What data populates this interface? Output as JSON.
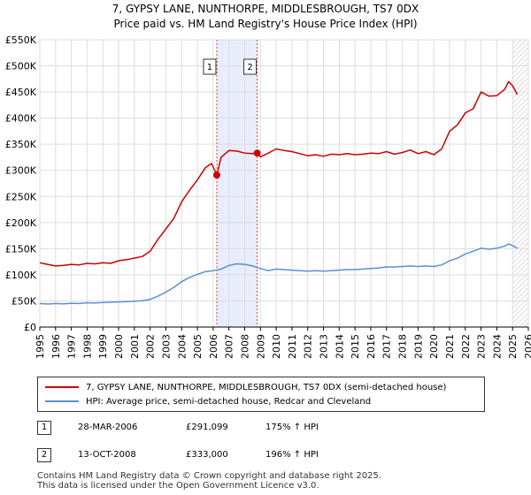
{
  "title_line1": "7, GYPSY LANE, NUNTHORPE, MIDDLESBROUGH, TS7 0DX",
  "title_line2": "Price paid vs. HM Land Registry's House Price Index (HPI)",
  "chart_data": {
    "type": "line",
    "title": "7, GYPSY LANE, NUNTHORPE, MIDDLESBROUGH, TS7 0DX",
    "subtitle": "Price paid vs. HM Land Registry's House Price Index (HPI)",
    "xlabel": "",
    "ylabel": "",
    "xlim": [
      1995,
      2026
    ],
    "ylim": [
      0,
      550000
    ],
    "x_ticks": [
      1995,
      1996,
      1997,
      1998,
      1999,
      2000,
      2001,
      2002,
      2003,
      2004,
      2005,
      2006,
      2007,
      2008,
      2009,
      2010,
      2011,
      2012,
      2013,
      2014,
      2015,
      2016,
      2017,
      2018,
      2019,
      2020,
      2021,
      2022,
      2023,
      2024,
      2025,
      2026
    ],
    "y_ticks": [
      0,
      50000,
      100000,
      150000,
      200000,
      250000,
      300000,
      350000,
      400000,
      450000,
      500000,
      550000
    ],
    "y_tick_labels": [
      "£0",
      "£50K",
      "£100K",
      "£150K",
      "£200K",
      "£250K",
      "£300K",
      "£350K",
      "£400K",
      "£450K",
      "£500K",
      "£550K"
    ],
    "grid": true,
    "series": [
      {
        "name": "7, GYPSY LANE, NUNTHORPE, MIDDLESBROUGH, TS7 0DX (semi-detached house)",
        "color": "#cc0000",
        "x": [
          1995.0,
          1995.5,
          1996.0,
          1996.5,
          1997.0,
          1997.5,
          1998.0,
          1998.5,
          1999.0,
          1999.5,
          2000.0,
          2000.5,
          2001.0,
          2001.5,
          2002.0,
          2002.5,
          2003.0,
          2003.5,
          2004.0,
          2004.5,
          2005.0,
          2005.5,
          2005.9,
          2006.23,
          2006.5,
          2007.0,
          2007.5,
          2008.0,
          2008.5,
          2008.79,
          2009.0,
          2009.5,
          2010.0,
          2010.5,
          2011.0,
          2011.5,
          2012.0,
          2012.5,
          2013.0,
          2013.5,
          2014.0,
          2014.5,
          2015.0,
          2015.5,
          2016.0,
          2016.5,
          2017.0,
          2017.5,
          2018.0,
          2018.5,
          2019.0,
          2019.5,
          2020.0,
          2020.5,
          2021.0,
          2021.5,
          2022.0,
          2022.5,
          2023.0,
          2023.5,
          2024.0,
          2024.5,
          2024.75,
          2025.0,
          2025.3
        ],
        "values": [
          123000,
          120000,
          117000,
          118000,
          120000,
          119000,
          122000,
          121000,
          123000,
          122000,
          127000,
          129000,
          132000,
          135000,
          145000,
          168000,
          188000,
          208000,
          240000,
          262000,
          282000,
          305000,
          313000,
          291099,
          325000,
          338000,
          337000,
          333000,
          332000,
          333000,
          326000,
          333000,
          341000,
          338000,
          336000,
          332000,
          328000,
          330000,
          327000,
          331000,
          330000,
          332000,
          330000,
          331000,
          333000,
          332000,
          336000,
          331000,
          334000,
          339000,
          332000,
          336000,
          330000,
          341000,
          375000,
          387000,
          410000,
          418000,
          450000,
          442000,
          443000,
          455000,
          470000,
          462000,
          445000
        ]
      },
      {
        "name": "HPI: Average price, semi-detached house, Redcar and Cleveland",
        "color": "#5b8fd6",
        "x": [
          1995.0,
          1995.5,
          1996.0,
          1996.5,
          1997.0,
          1997.5,
          1998.0,
          1998.5,
          1999.0,
          1999.5,
          2000.0,
          2000.5,
          2001.0,
          2001.5,
          2002.0,
          2002.5,
          2003.0,
          2003.5,
          2004.0,
          2004.5,
          2005.0,
          2005.5,
          2006.0,
          2006.5,
          2007.0,
          2007.5,
          2008.0,
          2008.5,
          2009.0,
          2009.5,
          2010.0,
          2010.5,
          2011.0,
          2011.5,
          2012.0,
          2012.5,
          2013.0,
          2013.5,
          2014.0,
          2014.5,
          2015.0,
          2015.5,
          2016.0,
          2016.5,
          2017.0,
          2017.5,
          2018.0,
          2018.5,
          2019.0,
          2019.5,
          2020.0,
          2020.5,
          2021.0,
          2021.5,
          2022.0,
          2022.5,
          2023.0,
          2023.5,
          2024.0,
          2024.5,
          2024.75,
          2025.0,
          2025.3
        ],
        "values": [
          45000,
          44000,
          45000,
          44500,
          45500,
          45000,
          46500,
          46000,
          47000,
          47500,
          48000,
          48500,
          49500,
          50500,
          53000,
          59000,
          67000,
          76000,
          87000,
          95000,
          101000,
          106000,
          108000,
          111000,
          118000,
          121000,
          120000,
          117000,
          112000,
          108000,
          111000,
          110000,
          109000,
          108000,
          107000,
          108000,
          107000,
          108000,
          109000,
          110000,
          110000,
          111000,
          112000,
          113000,
          115000,
          115000,
          116000,
          117000,
          116000,
          117000,
          116000,
          119000,
          127000,
          132000,
          140000,
          145000,
          151000,
          149000,
          151000,
          155000,
          159000,
          156000,
          151000
        ]
      }
    ],
    "annotations": [
      {
        "label": "1",
        "x": 2006.23,
        "y": 291099
      },
      {
        "label": "2",
        "x": 2008.79,
        "y": 333000
      }
    ],
    "highlight_range": [
      2006.23,
      2008.79
    ]
  },
  "legend": {
    "property_label": "7, GYPSY LANE, NUNTHORPE, MIDDLESBROUGH, TS7 0DX (semi-detached house)",
    "hpi_label": "HPI: Average price, semi-detached house, Redcar and Cleveland"
  },
  "transactions": [
    {
      "num": "1",
      "date": "28-MAR-2006",
      "price": "£291,099",
      "hpi": "175% ↑ HPI"
    },
    {
      "num": "2",
      "date": "13-OCT-2008",
      "price": "£333,000",
      "hpi": "196% ↑ HPI"
    }
  ],
  "footer_line1": "Contains HM Land Registry data © Crown copyright and database right 2025.",
  "footer_line2": "This data is licensed under the Open Government Licence v3.0."
}
